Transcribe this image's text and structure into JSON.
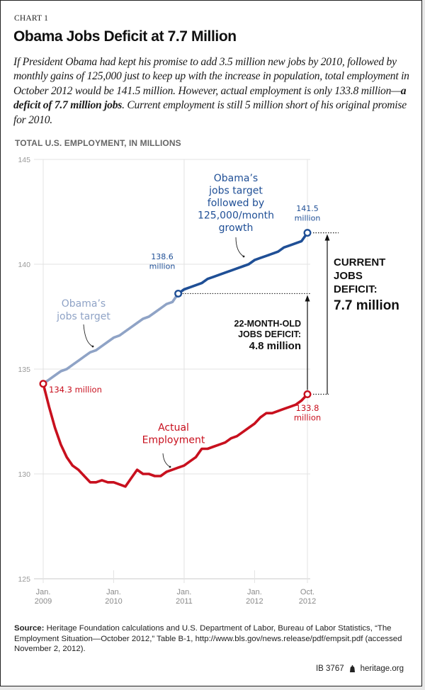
{
  "header": {
    "kicker": "CHART 1",
    "title": "Obama Jobs Deficit at 7.7 Million",
    "subtitle_parts": [
      "If President Obama had kept his promise to add 3.5 million new jobs by 2010, followed by monthly gains of 125,000 just to keep up with the increase in population, total employment in October 2012 would be 141.5 million. However, actual employment is only 133.8 million—",
      "a deficit of 7.7 million jobs",
      ". Current employment is still 5 million short of his original promise for 2010."
    ]
  },
  "chart_data": {
    "type": "line",
    "title": "Obama Jobs Deficit at 7.7 Million",
    "ylabel": "TOTAL U.S. EMPLOYMENT, IN MILLIONS",
    "xlabel": "",
    "ylim": [
      125,
      145
    ],
    "yticks": [
      125,
      130,
      135,
      140,
      145
    ],
    "xlim_months": [
      0,
      45
    ],
    "xticks": [
      {
        "month": 0,
        "line1": "Jan.",
        "line2": "2009"
      },
      {
        "month": 12,
        "line1": "Jan.",
        "line2": "2010"
      },
      {
        "month": 24,
        "line1": "Jan.",
        "line2": "2011"
      },
      {
        "month": 36,
        "line1": "Jan.",
        "line2": "2012"
      },
      {
        "month": 45,
        "line1": "Oct.",
        "line2": "2012"
      }
    ],
    "grid": true,
    "series": [
      {
        "name": "Obama's jobs target",
        "color": "#8fa3c6",
        "start_month": 0,
        "values": [
          134.3,
          134.5,
          134.7,
          134.9,
          135.0,
          135.2,
          135.4,
          135.6,
          135.8,
          135.9,
          136.1,
          136.3,
          136.5,
          136.6,
          136.8,
          137.0,
          137.2,
          137.4,
          137.5,
          137.7,
          137.9,
          138.1,
          138.2,
          138.6
        ]
      },
      {
        "name": "Obama's jobs target followed by 125,000/month growth",
        "color": "#1f4f96",
        "start_month": 23,
        "values": [
          138.6,
          138.8,
          138.9,
          139.0,
          139.1,
          139.3,
          139.4,
          139.5,
          139.6,
          139.7,
          139.8,
          139.9,
          140.0,
          140.2,
          140.3,
          140.4,
          140.5,
          140.6,
          140.8,
          140.9,
          141.0,
          141.1,
          141.5
        ]
      },
      {
        "name": "Actual Employment",
        "color": "#c8101e",
        "start_month": 0,
        "values": [
          134.3,
          133.2,
          132.2,
          131.4,
          130.8,
          130.4,
          130.2,
          129.9,
          129.6,
          129.6,
          129.7,
          129.6,
          129.6,
          129.5,
          129.4,
          129.8,
          130.2,
          130.0,
          130.0,
          129.9,
          129.9,
          130.1,
          130.2,
          130.3,
          130.4,
          130.6,
          130.8,
          131.2,
          131.2,
          131.3,
          131.4,
          131.5,
          131.7,
          131.8,
          132.0,
          132.2,
          132.4,
          132.7,
          132.9,
          132.9,
          133.0,
          133.1,
          133.2,
          133.3,
          133.5,
          133.8
        ]
      }
    ],
    "annotations": {
      "light_target_label": [
        "Obama’s",
        "jobs target"
      ],
      "dark_target_label": [
        "Obama’s",
        "jobs target",
        "followed by",
        "125,000/month",
        "growth"
      ],
      "actual_label": [
        "Actual",
        "Employment"
      ],
      "start_value_label": "134.3 million",
      "mid_target_label": [
        "138.6",
        "million"
      ],
      "end_target_label": [
        "141.5",
        "million"
      ],
      "end_actual_label": [
        "133.8",
        "million"
      ],
      "old_deficit_label": [
        "22-MONTH-OLD",
        "JOBS DEFICIT:",
        "4.8 million"
      ],
      "current_deficit_label": [
        "CURRENT",
        "JOBS",
        "DEFICIT:",
        "7.7 million"
      ]
    }
  },
  "footer": {
    "source_label": "Source:",
    "source_text": " Heritage Foundation calculations and U.S. Department of Labor, Bureau of Labor Statistics, “The Employment Situation—October 2012,” Table B-1,  http://www.bls.gov/news.release/pdf/empsit.pdf (accessed November 2, 2012).",
    "id": "IB 3767",
    "site": "heritage.org"
  }
}
